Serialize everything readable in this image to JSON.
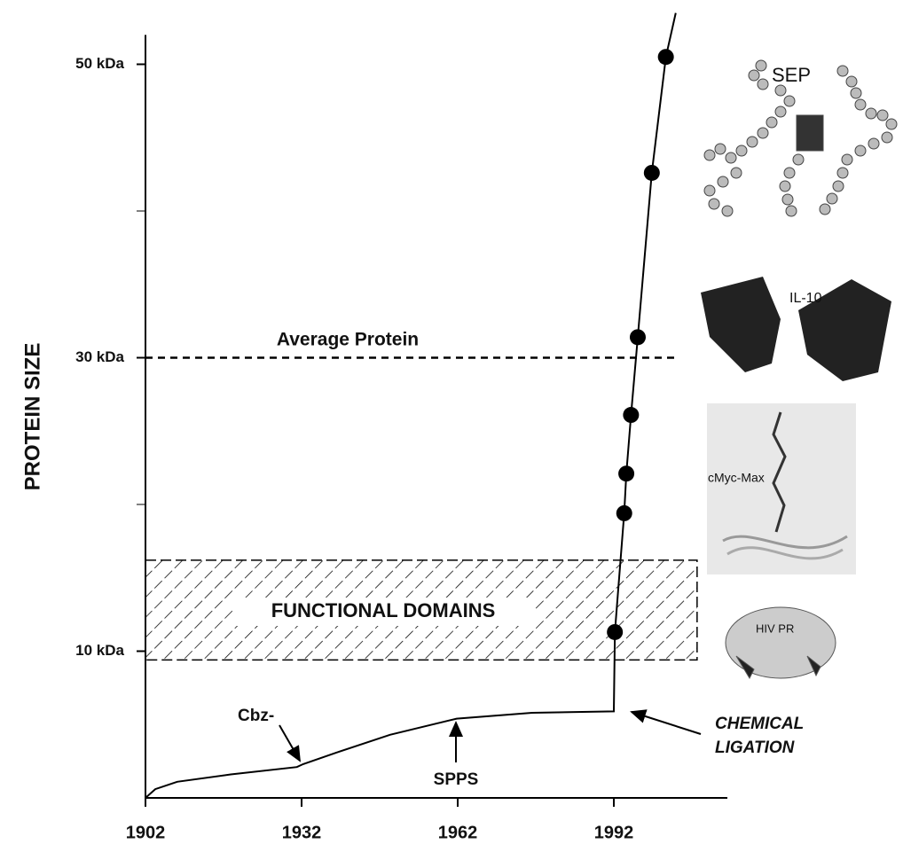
{
  "chart_data": {
    "type": "line",
    "y_label": "PROTEIN SIZE",
    "xlim": [
      1902,
      2011
    ],
    "xticks": [
      1902,
      1932,
      1962,
      1992
    ],
    "ylim": [
      0,
      52
    ],
    "yticks": [
      {
        "value": 10,
        "label": "10 kDa"
      },
      {
        "value": 30,
        "label": "30 kDa"
      },
      {
        "value": 50,
        "label": "50 kDa"
      }
    ],
    "minor_yticks": [
      20,
      40
    ],
    "series": [
      {
        "color": "#000000",
        "markers": false,
        "x": [
          1902,
          1903.9,
          1908.1,
          1918.4,
          1931.1,
          1932.3,
          1938.8,
          1949,
          1961.8,
          1976.3,
          1992,
          1992.2,
          1994,
          1994.4,
          1995.3,
          1996.6,
          1999.3,
          2002,
          2003.9
        ],
        "values": [
          0,
          0.6,
          1.1,
          1.6,
          2.1,
          2.3,
          3.1,
          4.3,
          5.4,
          5.8,
          5.9,
          11.3,
          19.4,
          22.1,
          26.1,
          31.4,
          42.6,
          50.5,
          53.5
        ]
      },
      {
        "color": "#000000",
        "markers": true,
        "x": [
          1992.2,
          1994,
          1994.4,
          1995.3,
          1996.6,
          1999.3,
          2002
        ],
        "values": [
          11.3,
          19.4,
          22.1,
          26.1,
          31.4,
          42.6,
          50.5
        ]
      }
    ],
    "reference_line": {
      "label": "Average Protein",
      "value": 30,
      "x": [
        1902,
        2004.5
      ]
    },
    "band": {
      "label": "FUNCTIONAL DOMAINS",
      "y": [
        9.4,
        16.2
      ],
      "x": [
        1902,
        2008
      ]
    },
    "annotations": {
      "cbz": "Cbz-",
      "spps": "SPPS",
      "ligation": [
        "CHEMICAL",
        "LIGATION"
      ]
    },
    "structures": [
      "SEP",
      "IL-10",
      "cMyc-Max",
      "HIV PR"
    ]
  }
}
